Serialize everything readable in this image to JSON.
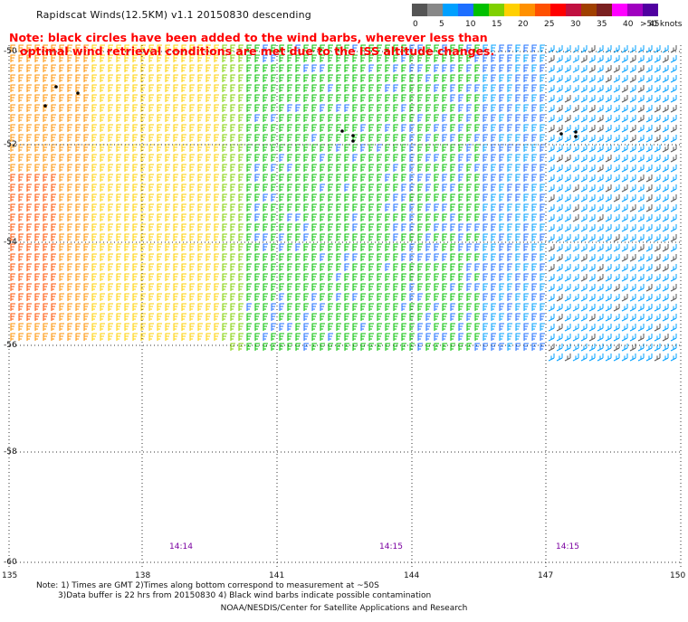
{
  "title": "Rapidscat Winds(12.5KM) v1.1 20150830 descending",
  "note_line1": "Note: black circles have been added to the wind barbs, wherever less than",
  "note_line2": "optimal wind retrieval conditions are met due to the ISS altitude changes.",
  "legend": {
    "colors": [
      "#555555",
      "#888888",
      "#00a0ff",
      "#1e6fff",
      "#00c000",
      "#7fd000",
      "#ffd000",
      "#ff9000",
      "#ff5000",
      "#ff0000",
      "#c01040",
      "#a04000",
      "#7a2020",
      "#ff00ff",
      "#a000c0",
      "#5000a0"
    ],
    "labels": [
      "0",
      "5",
      "10",
      "15",
      "20",
      "25",
      "30",
      "35",
      "40",
      "45",
      ">50 knots"
    ]
  },
  "map": {
    "lon_labels": [
      "135",
      "138",
      "141",
      "144",
      "147",
      "150"
    ],
    "lat_labels": [
      "-50",
      "-52",
      "-54",
      "-56",
      "-58",
      "-60"
    ],
    "time_labels": [
      "14:14",
      "14:15",
      "14:15"
    ]
  },
  "footnote_line1": "Note: 1) Times are GMT 2)Times along bottom correspond to measurement at ~50S",
  "footnote_line2": "3)Data buffer is 22 hrs from 20150830 4) Black wind barbs indicate possible contamination",
  "credit": "NOAA/NESDIS/Center for Satellite Applications and Research"
}
